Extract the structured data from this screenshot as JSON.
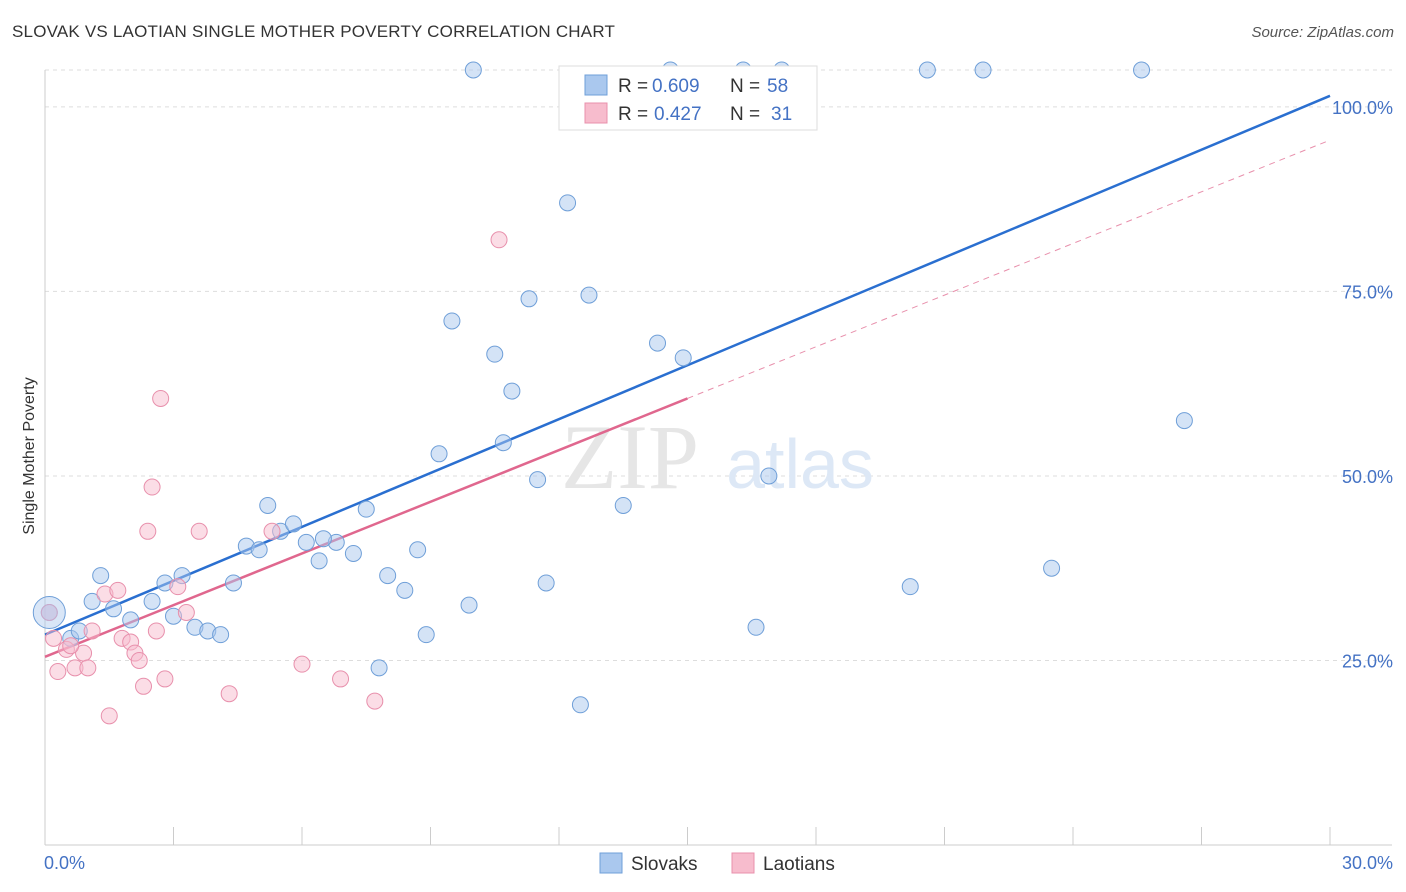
{
  "header": {
    "title": "SLOVAK VS LAOTIAN SINGLE MOTHER POVERTY CORRELATION CHART",
    "source": "Source: ZipAtlas.com"
  },
  "watermark": {
    "zip": "ZIP",
    "atlas": "atlas"
  },
  "colors": {
    "slovaks_fill": "#aac8ee",
    "slovaks_stroke": "#6f9fd8",
    "slovaks_line": "#2a6fd0",
    "laotians_fill": "#f7bccd",
    "laotians_stroke": "#e890ac",
    "laotians_line": "#e0678e",
    "tick_text": "#4472c4",
    "grid": "#dddddd"
  },
  "legend": {
    "rows": [
      {
        "r_label": "R =",
        "r_value": "0.609",
        "n_label": "N =",
        "n_value": "58",
        "series": "slovaks"
      },
      {
        "r_label": "R =",
        "r_value": "0.427",
        "n_label": "N =",
        "n_value": "31",
        "series": "laotians"
      }
    ]
  },
  "bottom_legend": {
    "slovaks": "Slovaks",
    "laotians": "Laotians"
  },
  "chart_data": {
    "type": "scatter",
    "title": "SLOVAK VS LAOTIAN SINGLE MOTHER POVERTY CORRELATION CHART",
    "xlabel": "",
    "ylabel": "Single Mother Poverty",
    "xlim": [
      0,
      30
    ],
    "ylim": [
      0,
      105
    ],
    "x_tick_labels": [
      "0.0%",
      "30.0%"
    ],
    "y_ticks": [
      25,
      50,
      75,
      100
    ],
    "y_tick_labels": [
      "25.0%",
      "50.0%",
      "75.0%",
      "100.0%"
    ],
    "grid": true,
    "series": [
      {
        "name": "Slovaks",
        "r": 0.609,
        "n": 58,
        "trend": {
          "x": [
            0,
            30
          ],
          "y": [
            28.5,
            101.5
          ],
          "style": "solid"
        },
        "points": [
          [
            0.1,
            31.5
          ],
          [
            0.6,
            28.0
          ],
          [
            0.8,
            29.0
          ],
          [
            1.1,
            33.0
          ],
          [
            1.3,
            36.5
          ],
          [
            1.6,
            32.0
          ],
          [
            2.0,
            30.5
          ],
          [
            2.5,
            33.0
          ],
          [
            2.8,
            35.5
          ],
          [
            3.2,
            36.5
          ],
          [
            3.5,
            29.5
          ],
          [
            3.8,
            29.0
          ],
          [
            4.1,
            28.5
          ],
          [
            4.4,
            35.5
          ],
          [
            4.7,
            40.5
          ],
          [
            5.0,
            40.0
          ],
          [
            5.2,
            46.0
          ],
          [
            5.5,
            42.5
          ],
          [
            5.8,
            43.5
          ],
          [
            6.1,
            41.0
          ],
          [
            6.4,
            38.5
          ],
          [
            6.8,
            41.0
          ],
          [
            7.2,
            39.5
          ],
          [
            7.5,
            45.5
          ],
          [
            7.8,
            24.0
          ],
          [
            8.0,
            36.5
          ],
          [
            8.4,
            34.5
          ],
          [
            8.7,
            40.0
          ],
          [
            8.9,
            28.5
          ],
          [
            9.2,
            53.0
          ],
          [
            9.5,
            71.0
          ],
          [
            9.9,
            32.5
          ],
          [
            10.0,
            105.0
          ],
          [
            10.5,
            66.5
          ],
          [
            10.7,
            54.5
          ],
          [
            10.9,
            61.5
          ],
          [
            11.3,
            74.0
          ],
          [
            11.5,
            49.5
          ],
          [
            11.7,
            35.5
          ],
          [
            12.2,
            87.0
          ],
          [
            12.5,
            19.0
          ],
          [
            12.7,
            74.5
          ],
          [
            13.5,
            46.0
          ],
          [
            14.3,
            68.0
          ],
          [
            14.6,
            105.0
          ],
          [
            14.9,
            66.0
          ],
          [
            16.3,
            105.0
          ],
          [
            16.6,
            29.5
          ],
          [
            16.9,
            50.0
          ],
          [
            17.2,
            105.0
          ],
          [
            20.2,
            35.0
          ],
          [
            20.6,
            105.0
          ],
          [
            21.9,
            105.0
          ],
          [
            23.5,
            37.5
          ],
          [
            25.6,
            105.0
          ],
          [
            26.6,
            57.5
          ],
          [
            6.5,
            41.5
          ],
          [
            3.0,
            31.0
          ]
        ]
      },
      {
        "name": "Laotians",
        "r": 0.427,
        "n": 31,
        "trend": {
          "x": [
            0,
            15
          ],
          "y": [
            25.5,
            60.5
          ],
          "style": "solid",
          "extension": {
            "x": [
              15,
              30
            ],
            "y": [
              60.5,
              95.5
            ],
            "style": "dashed"
          }
        },
        "points": [
          [
            0.1,
            31.5
          ],
          [
            0.3,
            23.5
          ],
          [
            0.5,
            26.5
          ],
          [
            0.7,
            24.0
          ],
          [
            0.9,
            26.0
          ],
          [
            1.0,
            24.0
          ],
          [
            1.1,
            29.0
          ],
          [
            1.4,
            34.0
          ],
          [
            1.5,
            17.5
          ],
          [
            1.7,
            34.5
          ],
          [
            1.8,
            28.0
          ],
          [
            2.0,
            27.5
          ],
          [
            2.1,
            26.0
          ],
          [
            2.2,
            25.0
          ],
          [
            2.3,
            21.5
          ],
          [
            2.4,
            42.5
          ],
          [
            2.5,
            48.5
          ],
          [
            2.6,
            29.0
          ],
          [
            2.7,
            60.5
          ],
          [
            2.8,
            22.5
          ],
          [
            3.1,
            35.0
          ],
          [
            3.3,
            31.5
          ],
          [
            3.6,
            42.5
          ],
          [
            4.3,
            20.5
          ],
          [
            5.3,
            42.5
          ],
          [
            6.0,
            24.5
          ],
          [
            6.9,
            22.5
          ],
          [
            7.7,
            19.5
          ],
          [
            10.6,
            82.0
          ],
          [
            0.2,
            28.0
          ],
          [
            0.6,
            27.0
          ]
        ]
      }
    ]
  }
}
